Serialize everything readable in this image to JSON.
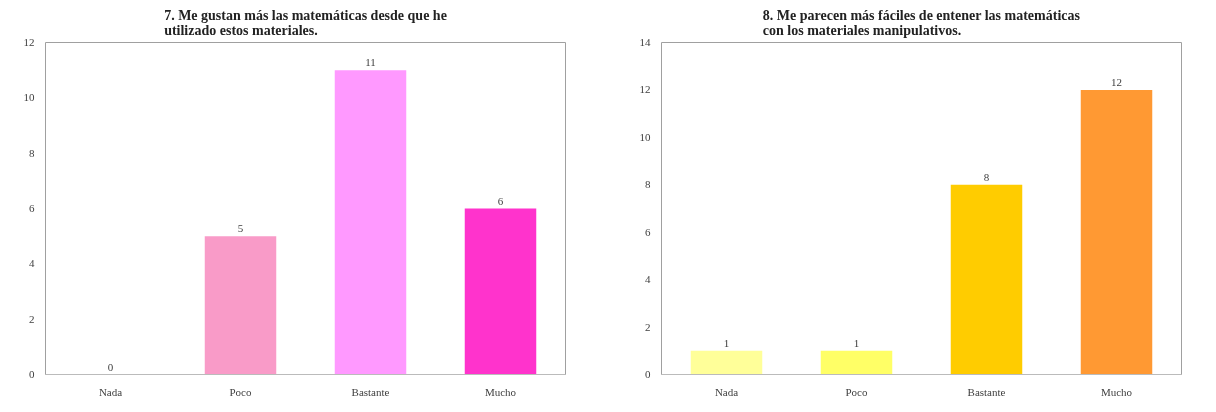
{
  "chart_data": [
    {
      "type": "bar",
      "title": "7. Me gustan más las matemáticas desde que he\nutilizado estos materiales.",
      "categories": [
        "Nada",
        "Poco",
        "Bastante",
        "Mucho"
      ],
      "values": [
        0,
        5,
        11,
        6
      ],
      "colors": [
        "#ff99cc",
        "#f99bc8",
        "#ff99ff",
        "#ff33cc"
      ],
      "ylim": [
        0,
        12
      ],
      "yticks": [
        0,
        2,
        4,
        6,
        8,
        10,
        12
      ],
      "grid": false,
      "data_labels": true
    },
    {
      "type": "bar",
      "title": "8. Me parecen más fáciles de entener las matemáticas\ncon los materiales manipulativos.",
      "categories": [
        "Nada",
        "Poco",
        "Bastante",
        "Mucho"
      ],
      "values": [
        1,
        1,
        8,
        12
      ],
      "colors": [
        "#ffff99",
        "#ffff66",
        "#ffcc00",
        "#ff9933"
      ],
      "ylim": [
        0,
        14
      ],
      "yticks": [
        0,
        2,
        4,
        6,
        8,
        10,
        12,
        14
      ],
      "grid": false,
      "data_labels": true
    }
  ]
}
